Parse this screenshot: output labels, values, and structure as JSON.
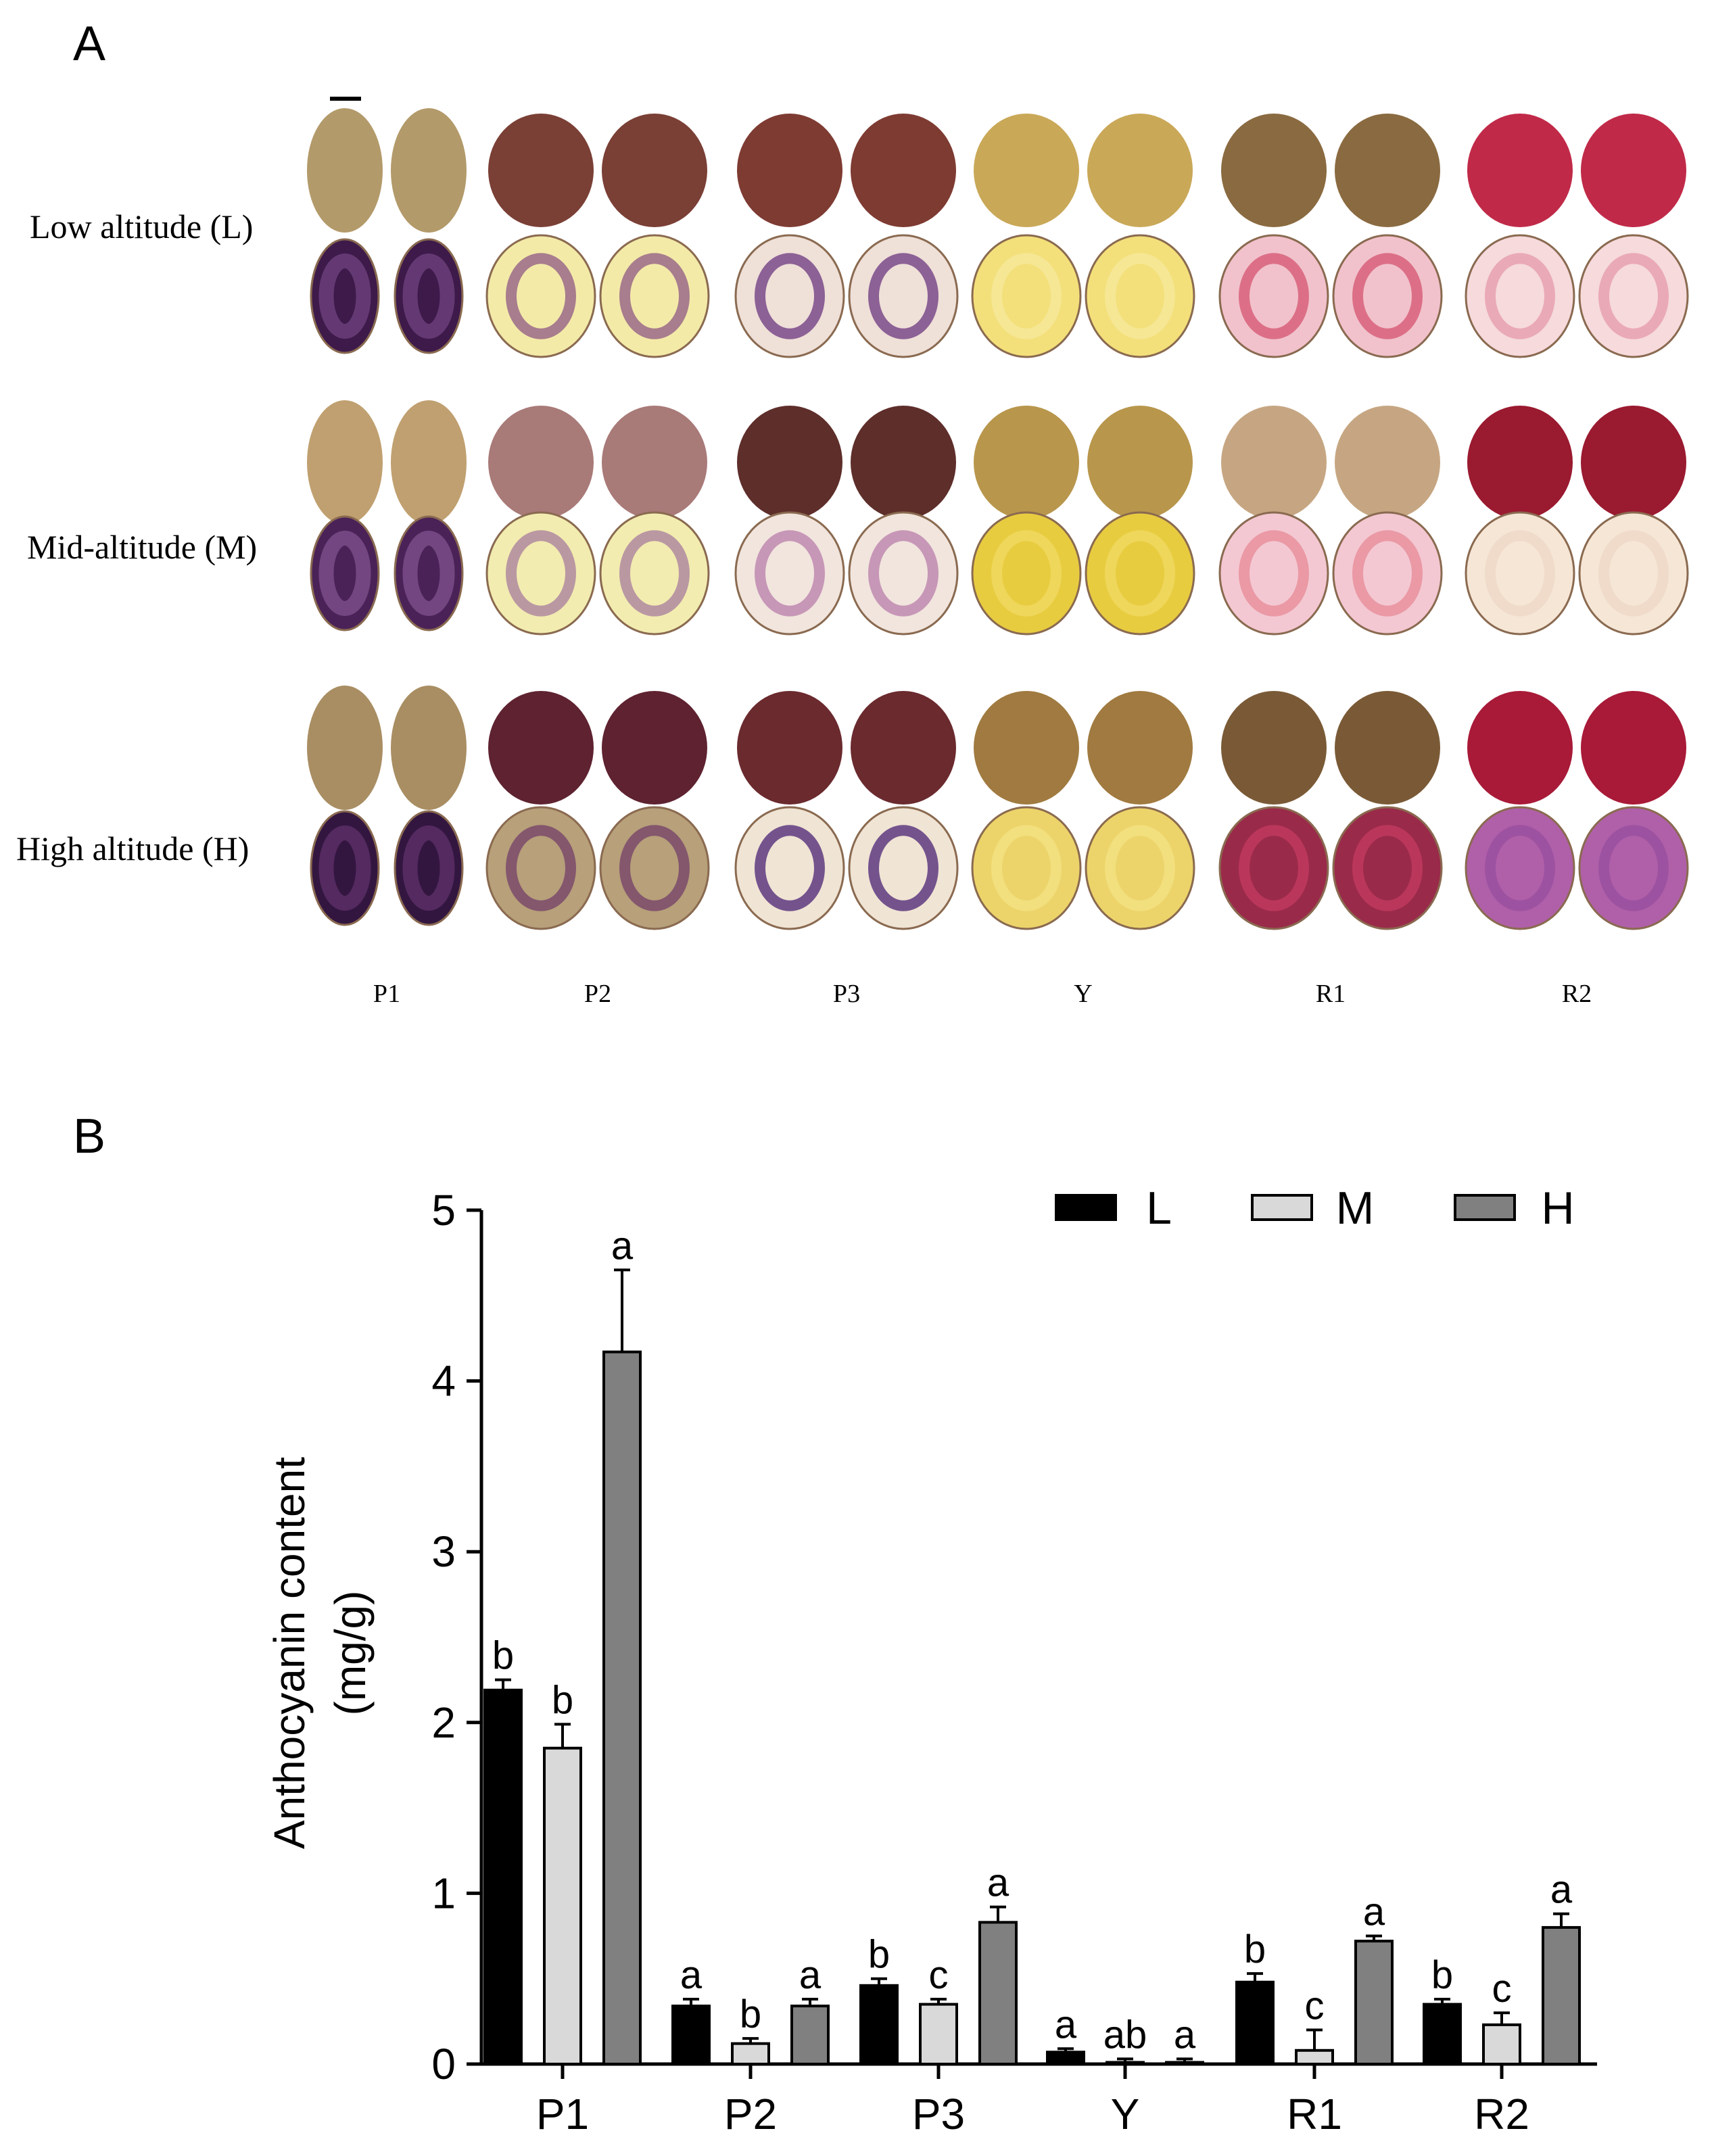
{
  "panelA": {
    "letter": "A",
    "row_labels": [
      "Low altitude (L)",
      "Mid-altitude (M)",
      "High altitude (H)"
    ],
    "col_labels": [
      "P1",
      "P2",
      "P3",
      "Y",
      "R1",
      "R2"
    ],
    "tuber_colors": {
      "P1": {
        "skin": [
          "#b39a6a",
          "#c0a070",
          "#a98e63"
        ],
        "flesh": [
          "#3d1a4a",
          "#4a2258",
          "#331640"
        ],
        "core": [
          "#6b3f7a",
          "#7a4c88",
          "#5a2e66"
        ]
      },
      "P2": {
        "skin": [
          "#7a3f35",
          "#a87a78",
          "#5e2230"
        ],
        "flesh": [
          "#f3eaa8",
          "#f2ecb0",
          "#b7a07a"
        ],
        "core": [
          "#9a6a88",
          "#b08aa0",
          "#7b4a6b"
        ]
      },
      "P3": {
        "skin": [
          "#7e3b32",
          "#5e2e2a",
          "#6a2a2e"
        ],
        "flesh": [
          "#efe0d8",
          "#f1e5dd",
          "#f0e4d4"
        ],
        "core": [
          "#7a4a8a",
          "#c08ab0",
          "#5e3a80"
        ]
      },
      "Y": {
        "skin": [
          "#c9a858",
          "#b8964c",
          "#a07a40"
        ],
        "flesh": [
          "#f3e07a",
          "#e8cc40",
          "#ecd46a"
        ],
        "core": [
          "#f6e89a",
          "#f0d860",
          "#f3e080"
        ]
      },
      "R1": {
        "skin": [
          "#8a6a40",
          "#c6a682",
          "#7a5a36"
        ],
        "flesh": [
          "#f1c2cc",
          "#f3c8d2",
          "#9a2a4a"
        ],
        "core": [
          "#d8607a",
          "#e8909e",
          "#c03a5e"
        ]
      },
      "R2": {
        "skin": [
          "#c02a48",
          "#9a1a30",
          "#a81a38"
        ],
        "flesh": [
          "#f6dadc",
          "#f6e6d6",
          "#b060a8"
        ],
        "core": [
          "#e8a0b0",
          "#efd8c8",
          "#9a50a0"
        ]
      }
    }
  },
  "panelB": {
    "letter": "B"
  },
  "chart_data": {
    "type": "bar",
    "categories": [
      "P1",
      "P2",
      "P3",
      "Y",
      "R1",
      "R2"
    ],
    "series": [
      {
        "name": "L",
        "color": "#000000",
        "values": [
          2.19,
          0.34,
          0.46,
          0.07,
          0.48,
          0.35
        ],
        "errors": [
          0.06,
          0.04,
          0.04,
          0.02,
          0.05,
          0.03
        ],
        "letters": [
          "b",
          "a",
          "b",
          "a",
          "b",
          "b"
        ]
      },
      {
        "name": "M",
        "color": "#d9d9d9",
        "values": [
          1.85,
          0.12,
          0.35,
          0.01,
          0.08,
          0.23
        ],
        "errors": [
          0.14,
          0.03,
          0.03,
          0.02,
          0.12,
          0.07
        ],
        "letters": [
          "b",
          "b",
          "c",
          "ab",
          "c",
          "c"
        ]
      },
      {
        "name": "H",
        "color": "#808080",
        "values": [
          4.17,
          0.34,
          0.83,
          0.01,
          0.72,
          0.8
        ],
        "errors": [
          0.48,
          0.04,
          0.09,
          0.02,
          0.03,
          0.08
        ],
        "letters": [
          "a",
          "a",
          "a",
          "a",
          "a",
          "a"
        ]
      }
    ],
    "ylabel_line1": "Anthocyanin content",
    "ylabel_line2": "(mg/g)",
    "xlabel": "",
    "ylim": [
      0,
      5
    ],
    "yticks": [
      "0",
      "1",
      "2",
      "3",
      "4",
      "5"
    ],
    "legend_position": "top-right",
    "grid": false
  }
}
